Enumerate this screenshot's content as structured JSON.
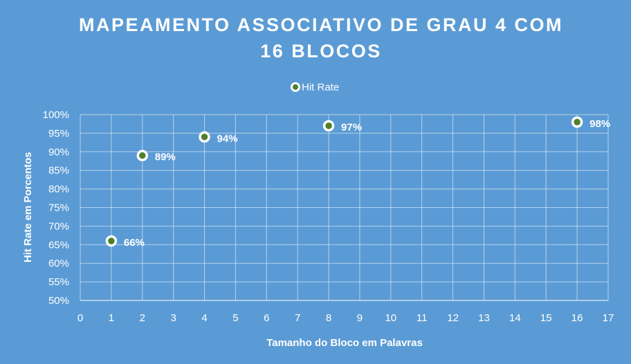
{
  "chart_data": {
    "type": "scatter",
    "title_lines": [
      "MAPEAMENTO ASSOCIATIVO DE GRAU 4 COM",
      "16 BLOCOS"
    ],
    "xlabel": "Tamanho do Bloco em Palavras",
    "ylabel": "Hit Rate em Porcentos",
    "xlim": [
      0,
      17
    ],
    "ylim": [
      50,
      100
    ],
    "x_ticks": [
      "0",
      "1",
      "2",
      "3",
      "4",
      "5",
      "6",
      "7",
      "8",
      "9",
      "10",
      "11",
      "12",
      "13",
      "14",
      "15",
      "16",
      "17"
    ],
    "y_ticks": [
      "50%",
      "55%",
      "60%",
      "65%",
      "70%",
      "75%",
      "80%",
      "85%",
      "90%",
      "95%",
      "100%"
    ],
    "grid": true,
    "legend_position": "top-center",
    "series": [
      {
        "name": "Hit Rate",
        "x": [
          1,
          2,
          4,
          8,
          16
        ],
        "y": [
          66,
          89,
          94,
          97,
          98
        ],
        "labels": [
          "66%",
          "89%",
          "94%",
          "97%",
          "98%"
        ],
        "marker_fill": "#4e7f2b",
        "marker_edge": "#ffffff"
      }
    ],
    "colors": {
      "background": "#5b9bd5",
      "text": "#ffffff",
      "gridline": "#a9c9ea"
    }
  }
}
